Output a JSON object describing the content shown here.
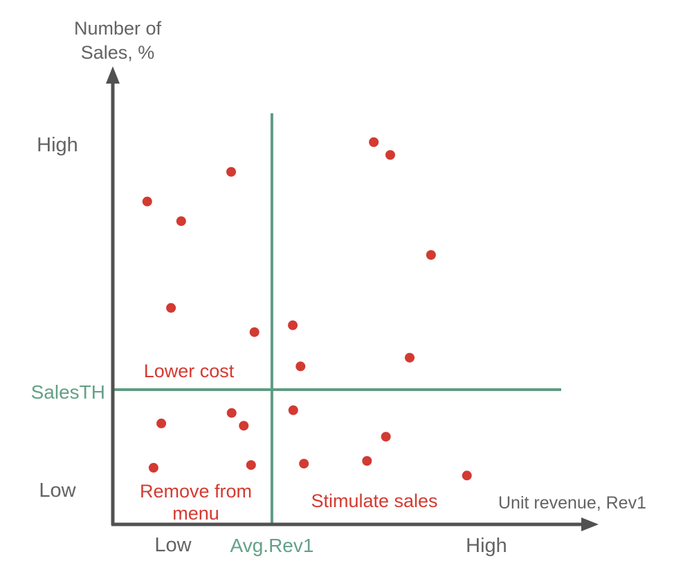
{
  "chart": {
    "y_axis": {
      "title_lines": [
        "Number of",
        "Sales, %"
      ],
      "tick_high": "High",
      "tick_low": "Low"
    },
    "x_axis": {
      "title": "Unit revenue, Rev1",
      "tick_low": "Low",
      "tick_high": "High"
    },
    "thresholds": {
      "sales_label": "SalesTH",
      "avg_label": "Avg.Rev1"
    },
    "quadrants": {
      "lower_cost": "Lower cost",
      "remove_line1": "Remove from",
      "remove_line2": "menu",
      "stimulate": "Stimulate sales"
    }
  },
  "colors": {
    "point_red": "#d23a32",
    "label_red": "#d43a32",
    "threshold_green": "#5e9c83",
    "label_green": "#64a088",
    "axis_gray": "#515151",
    "text_gray": "#636363"
  },
  "chart_data": {
    "type": "scatter",
    "title": "",
    "xlabel": "Unit revenue, Rev1",
    "ylabel": "Number of Sales, %",
    "x_tick_labels": [
      "Low",
      "High"
    ],
    "y_tick_labels": [
      "Low",
      "High"
    ],
    "x_range": [
      0,
      1
    ],
    "y_range": [
      0,
      1
    ],
    "grid": false,
    "thresholds": {
      "sales_th_y": 0.295,
      "avg_rev1_x": 0.328
    },
    "annotations": [
      {
        "text": "Lower cost",
        "quadrant": "upper-left"
      },
      {
        "text": "Remove from menu",
        "quadrant": "lower-left"
      },
      {
        "text": "Stimulate sales",
        "quadrant": "lower-right"
      }
    ],
    "points": [
      {
        "x": 0.071,
        "y": 0.707
      },
      {
        "x": 0.141,
        "y": 0.664
      },
      {
        "x": 0.244,
        "y": 0.772
      },
      {
        "x": 0.12,
        "y": 0.474
      },
      {
        "x": 0.292,
        "y": 0.421
      },
      {
        "x": 0.538,
        "y": 0.837
      },
      {
        "x": 0.572,
        "y": 0.809
      },
      {
        "x": 0.656,
        "y": 0.59
      },
      {
        "x": 0.612,
        "y": 0.365
      },
      {
        "x": 0.371,
        "y": 0.436
      },
      {
        "x": 0.387,
        "y": 0.346
      },
      {
        "x": 0.1,
        "y": 0.221
      },
      {
        "x": 0.245,
        "y": 0.244
      },
      {
        "x": 0.27,
        "y": 0.216
      },
      {
        "x": 0.372,
        "y": 0.25
      },
      {
        "x": 0.084,
        "y": 0.124
      },
      {
        "x": 0.285,
        "y": 0.13
      },
      {
        "x": 0.394,
        "y": 0.133
      },
      {
        "x": 0.563,
        "y": 0.192
      },
      {
        "x": 0.524,
        "y": 0.139
      },
      {
        "x": 0.73,
        "y": 0.107
      }
    ]
  }
}
